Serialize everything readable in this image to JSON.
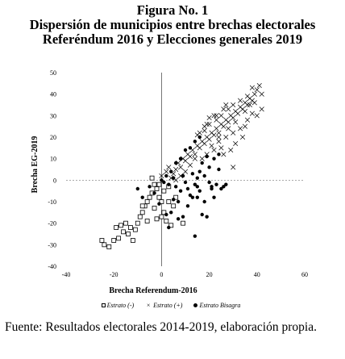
{
  "figure": {
    "number": "Figura No. 1",
    "title_line1": "Dispersión de municipios entre brechas electorales",
    "title_line2": "Referéndum 2016 y Elecciones generales 2019"
  },
  "source_note": "Fuente: Resultados electorales 2014-2019, elaboración propia.",
  "chart_data": {
    "type": "scatter",
    "xlabel": "Brecha Referendum-2016",
    "ylabel": "Brecha EG-2019",
    "xlim": [
      -40,
      60
    ],
    "ylim": [
      -40,
      50
    ],
    "xticks": [
      -40,
      -20,
      0,
      20,
      40,
      60
    ],
    "yticks": [
      -40,
      -30,
      -20,
      -10,
      0,
      10,
      20,
      30,
      40,
      50
    ],
    "grid": "dashed reference lines at x=0 and y=0",
    "legend_position": "bottom",
    "series": [
      {
        "name": "Estrato (-)",
        "marker": "open-square",
        "points": [
          [
            -25,
            -28
          ],
          [
            -24,
            -30
          ],
          [
            -22,
            -31
          ],
          [
            -20,
            -28
          ],
          [
            -18,
            -27
          ],
          [
            -16,
            -24
          ],
          [
            -15,
            -20
          ],
          [
            -14,
            -25
          ],
          [
            -12,
            -28
          ],
          [
            -11,
            -23
          ],
          [
            -10,
            -20
          ],
          [
            -9,
            -17
          ],
          [
            -8,
            -15
          ],
          [
            -7,
            -12
          ],
          [
            -6,
            -10
          ],
          [
            -5,
            -8
          ],
          [
            -4,
            -6
          ],
          [
            -3,
            -13
          ],
          [
            -2,
            -4
          ],
          [
            -2,
            -18
          ],
          [
            -1,
            -2
          ],
          [
            0,
            -17
          ],
          [
            0,
            -10
          ],
          [
            1,
            -5
          ],
          [
            1,
            -15
          ],
          [
            2,
            -19
          ],
          [
            3,
            -10
          ],
          [
            3,
            -3
          ],
          [
            4,
            -21
          ],
          [
            -4,
            1
          ],
          [
            -8,
            -12
          ],
          [
            -13,
            -22
          ],
          [
            -17,
            -21
          ],
          [
            -19,
            -22
          ],
          [
            -6,
            -19
          ],
          [
            -1,
            -8
          ],
          [
            5,
            -12
          ],
          [
            6,
            -8
          ],
          [
            -3,
            -2
          ],
          [
            9,
            -20
          ]
        ]
      },
      {
        "name": "Estrato (+)",
        "marker": "x",
        "points": [
          [
            0,
            2
          ],
          [
            2,
            4
          ],
          [
            3,
            6
          ],
          [
            4,
            1
          ],
          [
            5,
            3
          ],
          [
            6,
            5
          ],
          [
            7,
            8
          ],
          [
            8,
            6
          ],
          [
            9,
            10
          ],
          [
            10,
            9
          ],
          [
            11,
            12
          ],
          [
            12,
            11
          ],
          [
            13,
            14
          ],
          [
            14,
            12
          ],
          [
            15,
            16
          ],
          [
            16,
            15
          ],
          [
            17,
            18
          ],
          [
            18,
            17
          ],
          [
            19,
            20
          ],
          [
            20,
            19
          ],
          [
            21,
            22
          ],
          [
            22,
            21
          ],
          [
            23,
            24
          ],
          [
            24,
            22
          ],
          [
            25,
            26
          ],
          [
            26,
            25
          ],
          [
            27,
            28
          ],
          [
            28,
            27
          ],
          [
            29,
            30
          ],
          [
            30,
            29
          ],
          [
            31,
            32
          ],
          [
            32,
            31
          ],
          [
            33,
            34
          ],
          [
            34,
            33
          ],
          [
            35,
            36
          ],
          [
            36,
            35
          ],
          [
            37,
            38
          ],
          [
            38,
            37
          ],
          [
            39,
            40
          ],
          [
            40,
            42
          ],
          [
            41,
            44
          ],
          [
            42,
            40
          ],
          [
            38,
            43
          ],
          [
            36,
            39
          ],
          [
            33,
            37
          ],
          [
            30,
            35
          ],
          [
            28,
            33
          ],
          [
            25,
            30
          ],
          [
            23,
            28
          ],
          [
            20,
            26
          ],
          [
            18,
            23
          ],
          [
            15,
            21
          ],
          [
            24,
            18
          ],
          [
            27,
            20
          ],
          [
            30,
            22
          ],
          [
            33,
            24
          ],
          [
            36,
            28
          ],
          [
            38,
            31
          ],
          [
            29,
            14
          ],
          [
            31,
            17
          ],
          [
            34,
            20
          ],
          [
            25,
            15
          ],
          [
            22,
            14
          ],
          [
            19,
            12
          ],
          [
            17,
            10
          ],
          [
            26,
            12
          ],
          [
            30,
            6
          ],
          [
            35,
            25
          ],
          [
            40,
            30
          ],
          [
            42,
            33
          ],
          [
            21,
            16
          ],
          [
            24,
            20
          ],
          [
            14,
            10
          ],
          [
            12,
            7
          ],
          [
            10,
            4
          ],
          [
            8,
            2
          ],
          [
            6,
            0
          ],
          [
            28,
            24
          ],
          [
            31,
            27
          ],
          [
            35,
            32
          ],
          [
            37,
            35
          ],
          [
            39,
            36
          ],
          [
            23,
            30
          ],
          [
            26,
            33
          ],
          [
            20,
            29
          ],
          [
            18,
            25
          ],
          [
            16,
            22
          ],
          [
            19,
            26
          ],
          [
            22,
            30
          ],
          [
            27,
            35
          ]
        ]
      },
      {
        "name": "Estrato Bisagra",
        "marker": "filled-circle",
        "points": [
          [
            -10,
            -4
          ],
          [
            -5,
            -3
          ],
          [
            -3,
            -6
          ],
          [
            0,
            0
          ],
          [
            1,
            -1
          ],
          [
            2,
            2
          ],
          [
            3,
            -2
          ],
          [
            4,
            4
          ],
          [
            5,
            -9
          ],
          [
            5,
            1
          ],
          [
            6,
            -3
          ],
          [
            7,
            -10
          ],
          [
            8,
            -5
          ],
          [
            9,
            2
          ],
          [
            10,
            -1
          ],
          [
            11,
            -4
          ],
          [
            12,
            -7
          ],
          [
            13,
            3
          ],
          [
            14,
            -2
          ],
          [
            15,
            1
          ],
          [
            16,
            -5
          ],
          [
            17,
            -16
          ],
          [
            18,
            -10
          ],
          [
            19,
            -17
          ],
          [
            20,
            -1
          ],
          [
            21,
            -3
          ],
          [
            22,
            -8
          ],
          [
            23,
            -2
          ],
          [
            24,
            5
          ],
          [
            25,
            -4
          ],
          [
            27,
            -2
          ],
          [
            14,
            -26
          ],
          [
            9,
            -17
          ],
          [
            7,
            -18
          ],
          [
            11,
            -12
          ],
          [
            13,
            -8
          ],
          [
            15,
            -3
          ],
          [
            16,
            4
          ],
          [
            18,
            2
          ],
          [
            20,
            6
          ],
          [
            22,
            10
          ],
          [
            24,
            12
          ],
          [
            26,
            -3
          ],
          [
            12,
            15
          ],
          [
            14,
            18
          ],
          [
            16,
            20
          ],
          [
            10,
            14
          ],
          [
            8,
            10
          ],
          [
            6,
            8
          ],
          [
            4,
            -15
          ],
          [
            2,
            -16
          ],
          [
            -8,
            -8
          ],
          [
            -1,
            -11
          ],
          [
            3,
            -22
          ],
          [
            17,
            8
          ],
          [
            19,
            11
          ],
          [
            21,
            -4
          ],
          [
            15,
            -8
          ]
        ]
      }
    ]
  }
}
